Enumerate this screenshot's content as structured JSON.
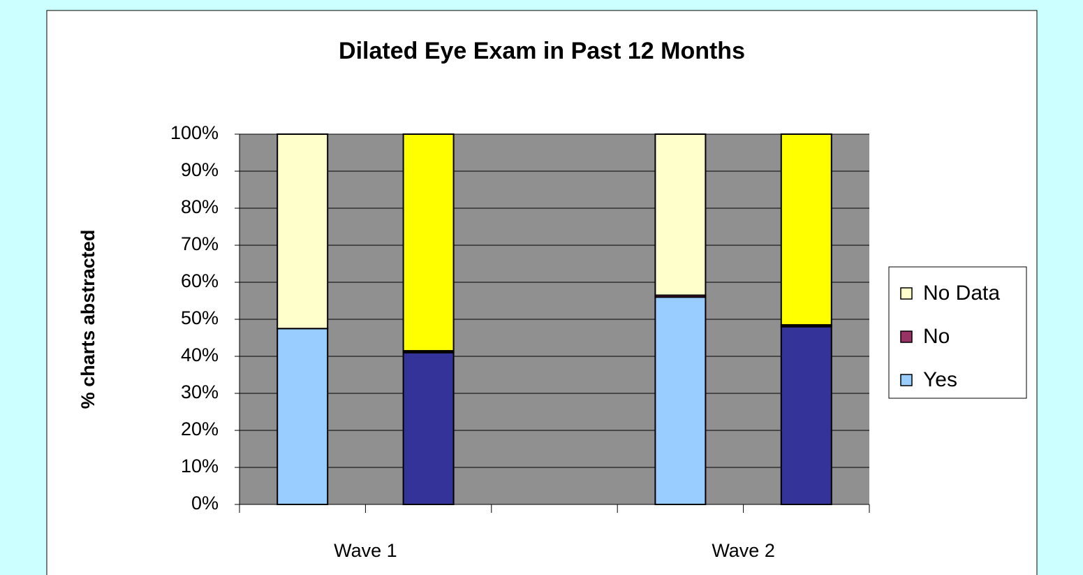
{
  "chart_data": {
    "type": "stacked_bar",
    "title": "Dilated Eye Exam in Past 12 Months",
    "y_label": "% charts abstracted",
    "categories": [
      "Wave 1",
      "Wave 2"
    ],
    "series": [
      {
        "name": "No Data",
        "color": "#ffffcc",
        "values": [
          52.5,
          43.5
        ]
      },
      {
        "name": "No",
        "color": "#993366",
        "values": [
          0,
          0.5
        ]
      },
      {
        "name": "Yes",
        "color": "#99ccff",
        "values": [
          47.5,
          56
        ]
      }
    ],
    "second_bars": [
      {
        "color": "#ffff00",
        "values": [
          58.5,
          51.5
        ]
      },
      {
        "color": "#000000",
        "values": [
          0.5,
          0.5
        ]
      },
      {
        "color": "#333399",
        "values": [
          41,
          48
        ]
      }
    ],
    "ylim": [
      0,
      100
    ],
    "yticks": [
      {
        "value": 0,
        "label": "0%"
      },
      {
        "value": 10,
        "label": "10%"
      },
      {
        "value": 20,
        "label": "20%"
      },
      {
        "value": 30,
        "label": "30%"
      },
      {
        "value": 40,
        "label": "40%"
      },
      {
        "value": 50,
        "label": "50%"
      },
      {
        "value": 60,
        "label": "60%"
      },
      {
        "value": 70,
        "label": "70%"
      },
      {
        "value": 80,
        "label": "80%"
      },
      {
        "value": 90,
        "label": "90%"
      },
      {
        "value": 100,
        "label": "100%"
      }
    ],
    "grid": true,
    "legend": "right",
    "plot_color": "#909090"
  }
}
